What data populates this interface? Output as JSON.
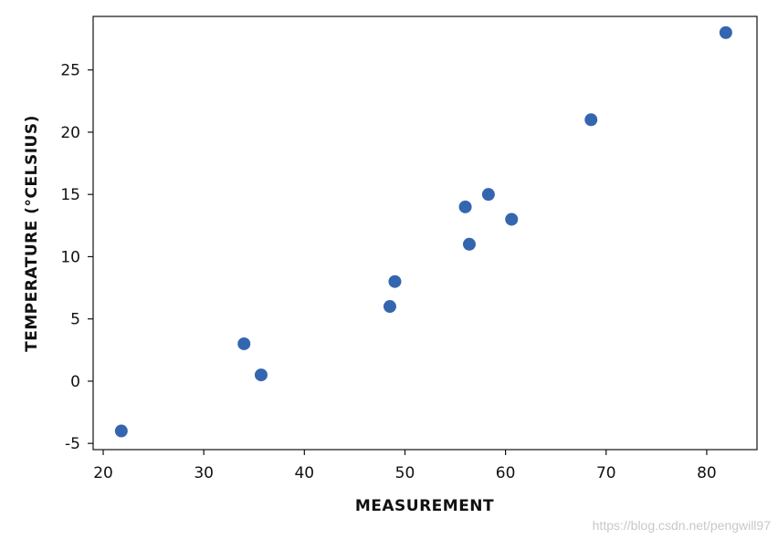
{
  "chart_data": {
    "type": "scatter",
    "title": "",
    "xlabel": "MEASUREMENT",
    "ylabel": "TEMPERATURE (°CELSIUS)",
    "xlim": [
      19,
      85
    ],
    "ylim": [
      -5.5,
      29.3
    ],
    "xticks": [
      20,
      30,
      40,
      50,
      60,
      70,
      80
    ],
    "yticks": [
      -5,
      0,
      5,
      10,
      15,
      20,
      25
    ],
    "grid": false,
    "marker_color": "#3466b0",
    "x": [
      21.8,
      34.0,
      35.7,
      48.5,
      49.0,
      56.0,
      56.4,
      58.3,
      60.6,
      68.5,
      81.9
    ],
    "y": [
      -4.0,
      3.0,
      0.5,
      6.0,
      8.0,
      14.0,
      11.0,
      15.0,
      13.0,
      21.0,
      28.0
    ]
  },
  "watermark": "https://blog.csdn.net/pengwill97"
}
